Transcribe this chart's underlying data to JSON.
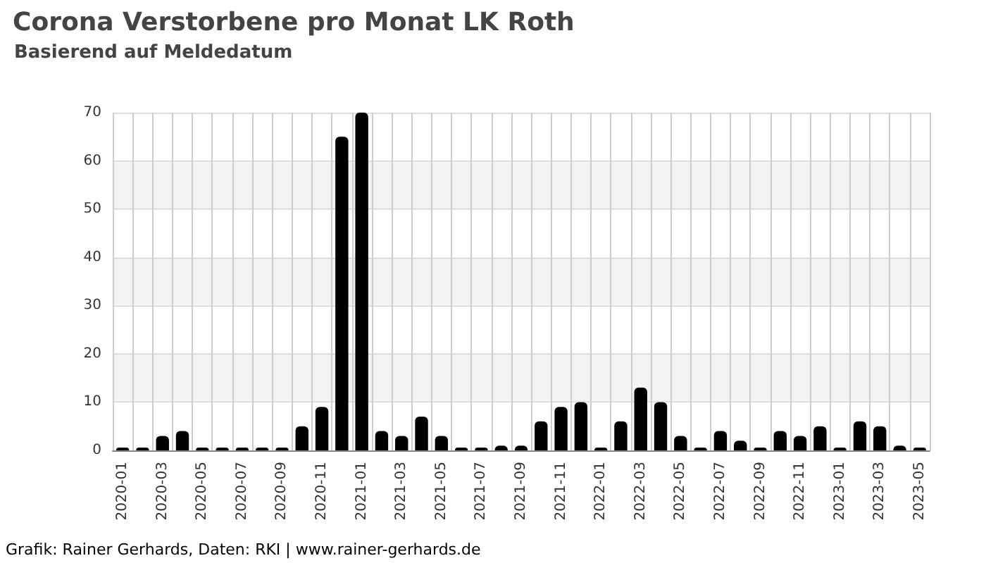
{
  "chart_data": {
    "type": "bar",
    "title": "Corona Verstorbene pro Monat LK Roth",
    "subtitle": "Basierend auf Meldedatum",
    "annotations": [
      "Grafik: Rainer Gerhards, Daten: RKI | www.rainer-gerhards.de"
    ],
    "categories": [
      "2020-01",
      null,
      "2020-03",
      null,
      "2020-05",
      null,
      "2020-07",
      null,
      "2020-09",
      null,
      "2020-11",
      null,
      "2021-01",
      null,
      "2021-03",
      null,
      "2021-05",
      null,
      "2021-07",
      null,
      "2021-09",
      null,
      "2021-11",
      null,
      "2022-01",
      null,
      "2022-03",
      null,
      "2022-05",
      null,
      "2022-07",
      null,
      "2022-09",
      null,
      "2022-11",
      null,
      "2023-01",
      null,
      "2023-03",
      null,
      "2023-05"
    ],
    "values": [
      0,
      0,
      3,
      4,
      0,
      0,
      0,
      0,
      0,
      5,
      9,
      65,
      70,
      4,
      3,
      7,
      3,
      0,
      0,
      1,
      1,
      6,
      9,
      10,
      0,
      6,
      13,
      10,
      3,
      0,
      4,
      2,
      0,
      4,
      3,
      5,
      0,
      6,
      5,
      1,
      0
    ],
    "color": "#000000",
    "ylim": [
      0,
      70
    ],
    "yticks": [
      0,
      10,
      20,
      30,
      40,
      50,
      60,
      70
    ],
    "grid": true
  }
}
